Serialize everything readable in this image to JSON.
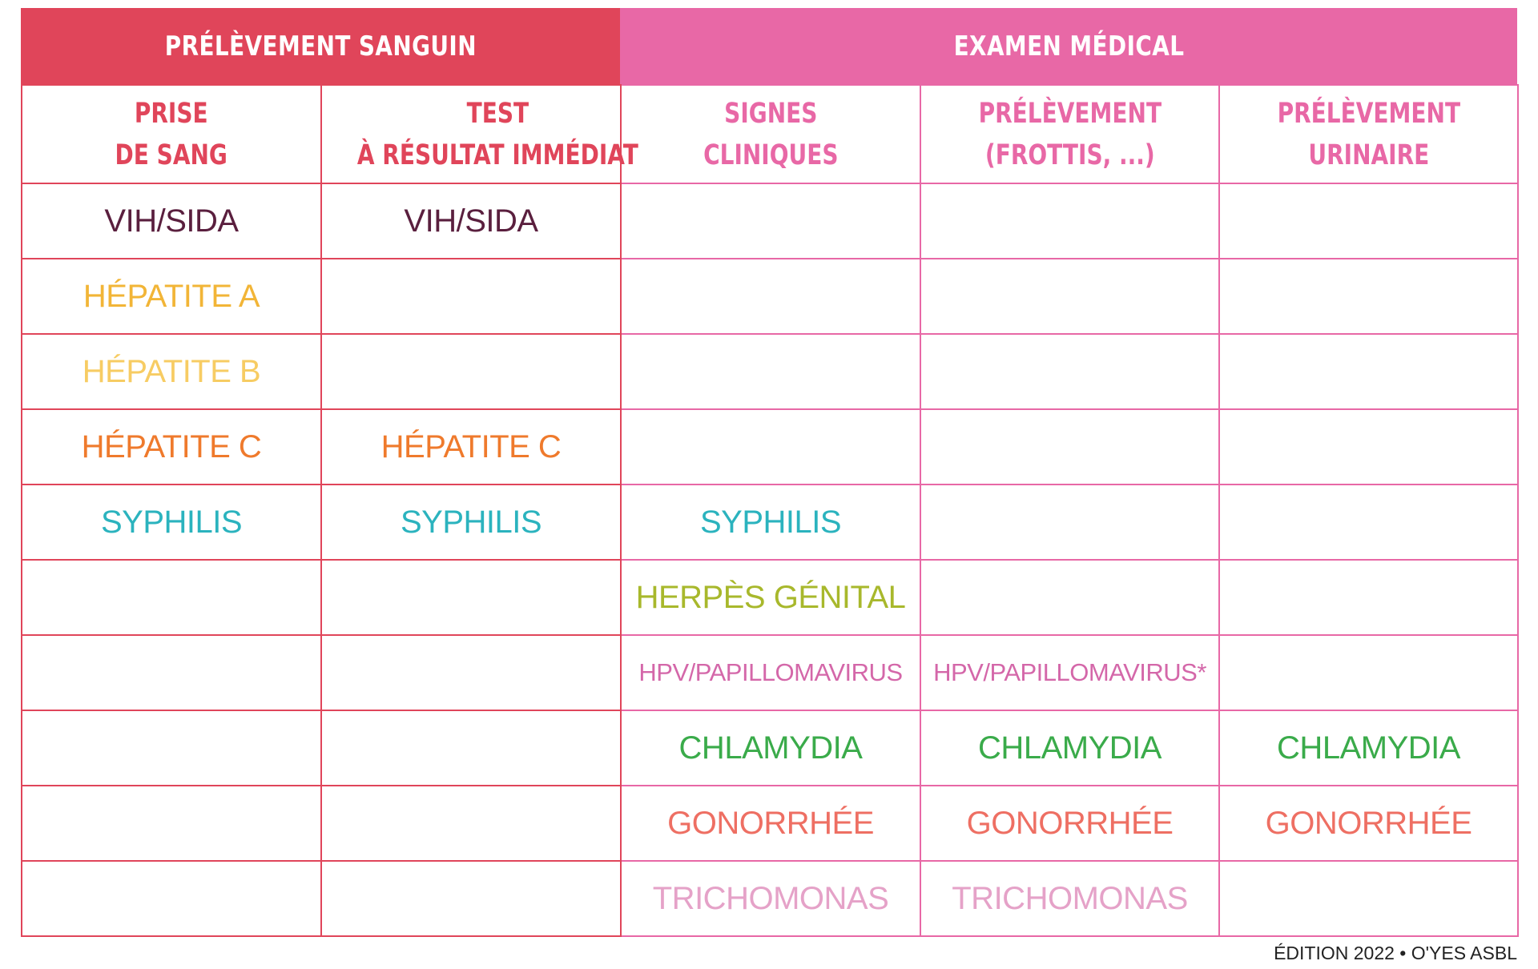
{
  "groups": {
    "blood": "PRÉLÈVEMENT SANGUIN",
    "medical": "EXAMEN MÉDICAL"
  },
  "columns": [
    {
      "line1": "PRISE",
      "line2": "DE SANG"
    },
    {
      "line1": "TEST",
      "line2": "À RÉSULTAT IMMÉDIAT"
    },
    {
      "line1": "SIGNES",
      "line2": "CLINIQUES"
    },
    {
      "line1": "PRÉLÈVEMENT",
      "line2": "(FROTTIS, ...)"
    },
    {
      "line1": "PRÉLÈVEMENT",
      "line2": "URINAIRE"
    }
  ],
  "rows": [
    {
      "color": "#5a1f3e",
      "cells": [
        "VIH/SIDA",
        "VIH/SIDA",
        "",
        "",
        ""
      ]
    },
    {
      "color": "#f2b537",
      "cells": [
        "HÉPATITE A",
        "",
        "",
        "",
        ""
      ]
    },
    {
      "color": "#f7cc63",
      "cells": [
        "HÉPATITE B",
        "",
        "",
        "",
        ""
      ]
    },
    {
      "color": "#ef7a2c",
      "cells": [
        "HÉPATITE C",
        "HÉPATITE C",
        "",
        "",
        ""
      ]
    },
    {
      "color": "#2bb3be",
      "cells": [
        "SYPHILIS",
        "SYPHILIS",
        "SYPHILIS",
        "",
        ""
      ]
    },
    {
      "color": "#a8b82c",
      "cells": [
        "",
        "",
        "HERPÈS GÉNITAL",
        "",
        ""
      ]
    },
    {
      "color": "#d467a9",
      "cells": [
        "",
        "",
        "HPV/PAPILLOMAVIRUS",
        "HPV/PAPILLOMAVIRUS*",
        ""
      ]
    },
    {
      "color": "#3aab4a",
      "cells": [
        "",
        "",
        "CHLAMYDIA",
        "CHLAMYDIA",
        "CHLAMYDIA"
      ]
    },
    {
      "color": "#ee6f63",
      "cells": [
        "",
        "",
        "GONORRHÉE",
        "GONORRHÉE",
        "GONORRHÉE"
      ]
    },
    {
      "color": "#e5a2c8",
      "cells": [
        "",
        "",
        "TRICHOMONAS",
        "TRICHOMONAS",
        ""
      ]
    }
  ],
  "footer": "ÉDITION 2022 • O'YES ASBL"
}
